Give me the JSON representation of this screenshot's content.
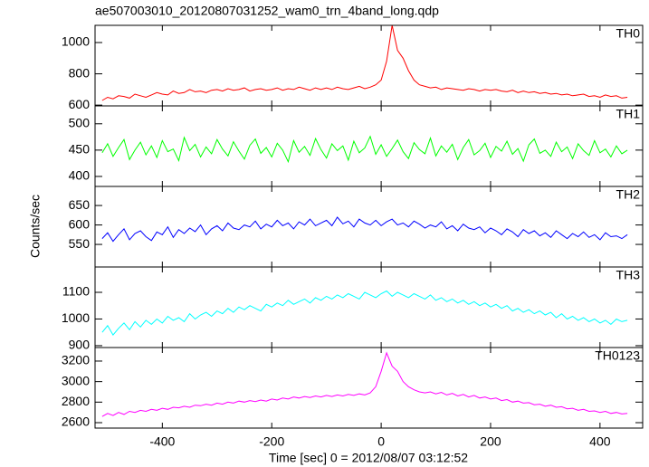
{
  "chart_data": {
    "type": "line",
    "title": "ae507003010_20120807031252_wam0_trn_4band_long.qdp",
    "xlabel": "Time [sec] 0 = 2012/08/07 03:12:52",
    "ylabel": "Counts/sec",
    "xlim": [
      -523,
      478
    ],
    "xticks": [
      -400,
      -200,
      0,
      200,
      400
    ],
    "x": [
      -510,
      -500,
      -490,
      -480,
      -470,
      -460,
      -450,
      -440,
      -430,
      -420,
      -410,
      -400,
      -390,
      -380,
      -370,
      -360,
      -350,
      -340,
      -330,
      -320,
      -310,
      -300,
      -290,
      -280,
      -270,
      -260,
      -250,
      -240,
      -230,
      -220,
      -210,
      -200,
      -190,
      -180,
      -170,
      -160,
      -150,
      -140,
      -130,
      -120,
      -110,
      -100,
      -90,
      -80,
      -70,
      -60,
      -50,
      -40,
      -30,
      -20,
      -10,
      0,
      10,
      20,
      30,
      40,
      50,
      60,
      70,
      80,
      90,
      100,
      110,
      120,
      130,
      140,
      150,
      160,
      170,
      180,
      190,
      200,
      210,
      220,
      230,
      240,
      250,
      260,
      270,
      280,
      290,
      300,
      310,
      320,
      330,
      340,
      350,
      360,
      370,
      380,
      390,
      400,
      410,
      420,
      430,
      440,
      450
    ],
    "series": [
      {
        "name": "TH0",
        "color": "#ff0000",
        "ylim": [
          595,
          1110
        ],
        "yticks": [
          600,
          800,
          1000
        ],
        "values": [
          630,
          650,
          640,
          660,
          655,
          645,
          670,
          660,
          650,
          665,
          680,
          670,
          665,
          690,
          675,
          680,
          700,
          685,
          690,
          680,
          695,
          700,
          690,
          705,
          695,
          700,
          710,
          690,
          700,
          705,
          695,
          700,
          710,
          695,
          705,
          700,
          715,
          705,
          695,
          710,
          700,
          710,
          700,
          715,
          705,
          700,
          710,
          720,
          705,
          715,
          730,
          760,
          880,
          1110,
          950,
          900,
          820,
          760,
          730,
          720,
          710,
          715,
          700,
          710,
          705,
          700,
          695,
          705,
          700,
          690,
          700,
          695,
          700,
          690,
          685,
          695,
          680,
          690,
          680,
          685,
          675,
          680,
          670,
          675,
          665,
          670,
          660,
          665,
          670,
          655,
          660,
          650,
          665,
          655,
          660,
          645,
          650
        ]
      },
      {
        "name": "TH1",
        "color": "#00ff00",
        "ylim": [
          381,
          534
        ],
        "yticks": [
          400,
          450,
          500
        ],
        "values": [
          445,
          462,
          438,
          455,
          470,
          432,
          450,
          465,
          441,
          458,
          436,
          468,
          447,
          452,
          430,
          474,
          449,
          461,
          437,
          456,
          443,
          470,
          452,
          439,
          466,
          448,
          433,
          459,
          471,
          444,
          455,
          437,
          463,
          450,
          428,
          468,
          446,
          457,
          440,
          472,
          451,
          435,
          462,
          449,
          458,
          431,
          467,
          445,
          454,
          476,
          442,
          460,
          438,
          453,
          469,
          447,
          434,
          464,
          451,
          443,
          473,
          439,
          458,
          446,
          461,
          432,
          455,
          470,
          441,
          449,
          463,
          436,
          457,
          448,
          467,
          442,
          453,
          429,
          460,
          471,
          444,
          450,
          438,
          465,
          447,
          456,
          434,
          462,
          449,
          440,
          468,
          445,
          452,
          437,
          458,
          443,
          450
        ]
      },
      {
        "name": "TH2",
        "color": "#0000ff",
        "ylim": [
          492,
          699
        ],
        "yticks": [
          550,
          600,
          650
        ],
        "values": [
          565,
          580,
          558,
          575,
          590,
          562,
          578,
          585,
          570,
          560,
          582,
          575,
          595,
          568,
          588,
          578,
          592,
          583,
          600,
          575,
          590,
          598,
          585,
          605,
          592,
          588,
          600,
          595,
          610,
          590,
          602,
          595,
          612,
          598,
          605,
          590,
          608,
          600,
          615,
          598,
          605,
          612,
          598,
          620,
          603,
          610,
          595,
          615,
          605,
          600,
          612,
          598,
          608,
          615,
          600,
          605,
          595,
          610,
          602,
          592,
          600,
          595,
          608,
          590,
          598,
          585,
          602,
          592,
          588,
          595,
          580,
          592,
          585,
          575,
          590,
          582,
          570,
          588,
          578,
          585,
          572,
          580,
          568,
          585,
          575,
          565,
          578,
          570,
          582,
          568,
          575,
          562,
          580,
          570,
          572,
          565,
          575
        ]
      },
      {
        "name": "TH3",
        "color": "#00ffff",
        "ylim": [
          893,
          1195
        ],
        "yticks": [
          900,
          1000,
          1100
        ],
        "values": [
          950,
          975,
          940,
          965,
          985,
          960,
          990,
          970,
          995,
          980,
          1000,
          985,
          1010,
          995,
          1005,
          990,
          1020,
          1000,
          1015,
          1025,
          1010,
          1030,
          1020,
          1040,
          1025,
          1045,
          1035,
          1050,
          1040,
          1030,
          1055,
          1045,
          1060,
          1050,
          1070,
          1055,
          1065,
          1075,
          1060,
          1080,
          1070,
          1085,
          1075,
          1090,
          1080,
          1095,
          1085,
          1075,
          1100,
          1090,
          1080,
          1095,
          1105,
          1085,
          1100,
          1090,
          1080,
          1095,
          1085,
          1075,
          1090,
          1070,
          1080,
          1065,
          1075,
          1060,
          1070,
          1055,
          1065,
          1050,
          1060,
          1045,
          1055,
          1040,
          1050,
          1030,
          1040,
          1025,
          1035,
          1020,
          1030,
          1015,
          1025,
          1005,
          1020,
          1000,
          1010,
          995,
          1005,
          990,
          1000,
          985,
          995,
          980,
          1000,
          990,
          995
        ]
      },
      {
        "name": "TH0123",
        "color": "#ff00ff",
        "ylim": [
          2547,
          3332
        ],
        "yticks": [
          2600,
          2800,
          3000,
          3200
        ],
        "values": [
          2660,
          2690,
          2670,
          2700,
          2680,
          2710,
          2700,
          2720,
          2710,
          2730,
          2720,
          2740,
          2730,
          2750,
          2745,
          2760,
          2750,
          2770,
          2765,
          2780,
          2770,
          2790,
          2780,
          2800,
          2790,
          2810,
          2800,
          2815,
          2805,
          2820,
          2810,
          2830,
          2820,
          2840,
          2830,
          2850,
          2840,
          2855,
          2845,
          2860,
          2850,
          2865,
          2855,
          2870,
          2860,
          2875,
          2865,
          2880,
          2870,
          2890,
          2950,
          3100,
          3280,
          3150,
          3100,
          3000,
          2950,
          2920,
          2900,
          2890,
          2900,
          2880,
          2895,
          2870,
          2885,
          2860,
          2875,
          2850,
          2865,
          2840,
          2850,
          2830,
          2840,
          2815,
          2825,
          2800,
          2810,
          2790,
          2795,
          2775,
          2780,
          2760,
          2770,
          2750,
          2755,
          2735,
          2740,
          2720,
          2730,
          2710,
          2715,
          2700,
          2710,
          2690,
          2700,
          2685,
          2690
        ]
      }
    ]
  }
}
